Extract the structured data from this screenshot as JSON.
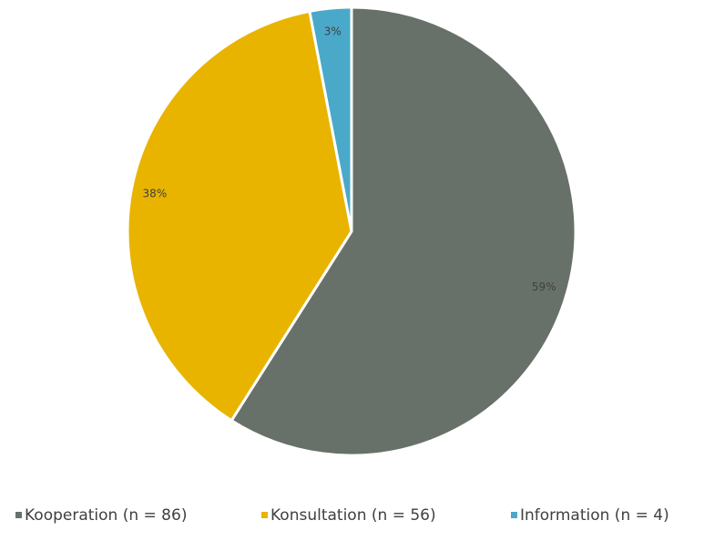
{
  "chart_data": {
    "type": "pie",
    "categories": [
      "Kooperation (n = 86)",
      "Konsultation (n = 56)",
      "Information (n = 4)"
    ],
    "values": [
      59,
      38,
      3
    ],
    "value_labels": [
      "59%",
      "38%",
      "3%"
    ],
    "colors": [
      "#687169",
      "#e8b400",
      "#4aa8c9"
    ],
    "legend": "bottom"
  }
}
